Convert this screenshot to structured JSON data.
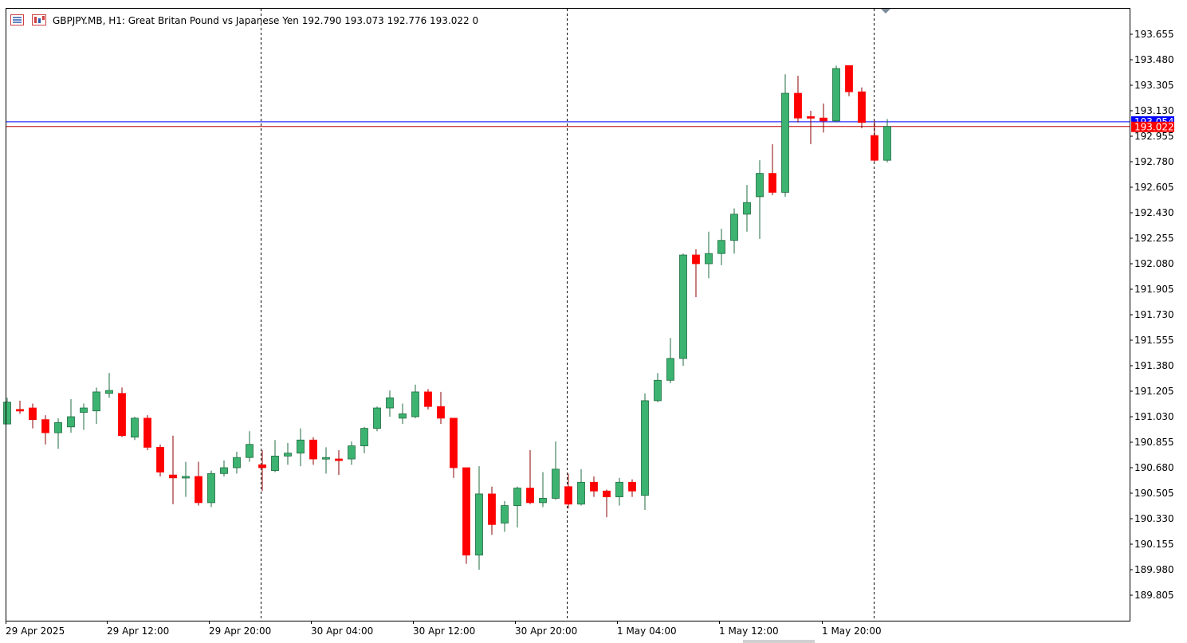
{
  "header": {
    "symbol": "GBPJPY.MB, H1:  Great Britan Pound vs Japanese Yen  192.790 193.073 192.776 193.022  0"
  },
  "colors": {
    "bull": "#3cb371",
    "bear": "#ff0000",
    "bid_line": "#0000ff",
    "ask_line": "#c00000",
    "price_tag_bid": "#0000ff",
    "price_tag_ask": "#ff0000",
    "grid": "#000000"
  },
  "chart_data": {
    "type": "candlestick",
    "symbol": "GBPJPY.MB",
    "timeframe": "H1",
    "ylim": [
      189.63,
      193.83
    ],
    "y_ticks": [
      "193.655",
      "193.480",
      "193.305",
      "193.130",
      "192.955",
      "192.780",
      "192.605",
      "192.430",
      "192.255",
      "192.080",
      "191.905",
      "191.730",
      "191.555",
      "191.380",
      "191.205",
      "191.030",
      "190.855",
      "190.680",
      "190.505",
      "190.330",
      "190.155",
      "189.980",
      "189.805"
    ],
    "x_ticks": [
      "29 Apr 2025",
      "29 Apr 12:00",
      "29 Apr 20:00",
      "30 Apr 04:00",
      "30 Apr 12:00",
      "30 Apr 20:00",
      "1 May 04:00",
      "1 May 12:00",
      "1 May 20:00"
    ],
    "session_separators": [
      "29 Apr 20:00",
      "30 Apr 20:00",
      "1 May 20:00"
    ],
    "bid_price": "193.054",
    "last_price": "193.022",
    "candles": [
      {
        "o": 190.98,
        "h": 191.16,
        "l": 190.98,
        "c": 191.13
      },
      {
        "o": 191.08,
        "h": 191.14,
        "l": 191.05,
        "c": 191.07
      },
      {
        "o": 191.09,
        "h": 191.12,
        "l": 190.95,
        "c": 191.01
      },
      {
        "o": 191.01,
        "h": 191.04,
        "l": 190.84,
        "c": 190.92
      },
      {
        "o": 190.92,
        "h": 191.02,
        "l": 190.81,
        "c": 190.99
      },
      {
        "o": 190.96,
        "h": 191.15,
        "l": 190.92,
        "c": 191.03
      },
      {
        "o": 191.06,
        "h": 191.12,
        "l": 190.94,
        "c": 191.09
      },
      {
        "o": 191.07,
        "h": 191.23,
        "l": 190.98,
        "c": 191.2
      },
      {
        "o": 191.19,
        "h": 191.33,
        "l": 191.16,
        "c": 191.21
      },
      {
        "o": 191.19,
        "h": 191.23,
        "l": 190.89,
        "c": 190.9
      },
      {
        "o": 190.89,
        "h": 191.03,
        "l": 190.87,
        "c": 191.02
      },
      {
        "o": 191.02,
        "h": 191.04,
        "l": 190.8,
        "c": 190.82
      },
      {
        "o": 190.82,
        "h": 190.84,
        "l": 190.62,
        "c": 190.65
      },
      {
        "o": 190.63,
        "h": 190.9,
        "l": 190.43,
        "c": 190.61
      },
      {
        "o": 190.62,
        "h": 190.72,
        "l": 190.48,
        "c": 190.62
      },
      {
        "o": 190.62,
        "h": 190.72,
        "l": 190.42,
        "c": 190.44
      },
      {
        "o": 190.44,
        "h": 190.66,
        "l": 190.41,
        "c": 190.64
      },
      {
        "o": 190.64,
        "h": 190.73,
        "l": 190.62,
        "c": 190.68
      },
      {
        "o": 190.68,
        "h": 190.79,
        "l": 190.64,
        "c": 190.75
      },
      {
        "o": 190.75,
        "h": 190.93,
        "l": 190.72,
        "c": 190.84
      },
      {
        "o": 190.7,
        "h": 190.8,
        "l": 190.52,
        "c": 190.68
      },
      {
        "o": 190.66,
        "h": 190.87,
        "l": 190.65,
        "c": 190.76
      },
      {
        "o": 190.76,
        "h": 190.85,
        "l": 190.7,
        "c": 190.78
      },
      {
        "o": 190.78,
        "h": 190.95,
        "l": 190.69,
        "c": 190.87
      },
      {
        "o": 190.87,
        "h": 190.89,
        "l": 190.7,
        "c": 190.74
      },
      {
        "o": 190.74,
        "h": 190.82,
        "l": 190.64,
        "c": 190.75
      },
      {
        "o": 190.74,
        "h": 190.8,
        "l": 190.63,
        "c": 190.73
      },
      {
        "o": 190.74,
        "h": 190.86,
        "l": 190.7,
        "c": 190.83
      },
      {
        "o": 190.83,
        "h": 190.96,
        "l": 190.78,
        "c": 190.95
      },
      {
        "o": 190.95,
        "h": 191.1,
        "l": 190.93,
        "c": 191.09
      },
      {
        "o": 191.09,
        "h": 191.21,
        "l": 191.03,
        "c": 191.16
      },
      {
        "o": 191.02,
        "h": 191.12,
        "l": 190.98,
        "c": 191.05
      },
      {
        "o": 191.03,
        "h": 191.25,
        "l": 191.02,
        "c": 191.2
      },
      {
        "o": 191.2,
        "h": 191.22,
        "l": 191.08,
        "c": 191.1
      },
      {
        "o": 191.1,
        "h": 191.2,
        "l": 190.98,
        "c": 191.02
      },
      {
        "o": 191.02,
        "h": 191.02,
        "l": 190.61,
        "c": 190.68
      },
      {
        "o": 190.68,
        "h": 190.68,
        "l": 190.02,
        "c": 190.08
      },
      {
        "o": 190.08,
        "h": 190.69,
        "l": 189.98,
        "c": 190.5
      },
      {
        "o": 190.5,
        "h": 190.55,
        "l": 190.22,
        "c": 190.29
      },
      {
        "o": 190.3,
        "h": 190.45,
        "l": 190.24,
        "c": 190.42
      },
      {
        "o": 190.42,
        "h": 190.55,
        "l": 190.27,
        "c": 190.54
      },
      {
        "o": 190.54,
        "h": 190.8,
        "l": 190.43,
        "c": 190.44
      },
      {
        "o": 190.44,
        "h": 190.65,
        "l": 190.41,
        "c": 190.47
      },
      {
        "o": 190.47,
        "h": 190.86,
        "l": 190.46,
        "c": 190.67
      },
      {
        "o": 190.55,
        "h": 190.64,
        "l": 190.4,
        "c": 190.43
      },
      {
        "o": 190.43,
        "h": 190.67,
        "l": 190.42,
        "c": 190.58
      },
      {
        "o": 190.58,
        "h": 190.62,
        "l": 190.48,
        "c": 190.52
      },
      {
        "o": 190.52,
        "h": 190.53,
        "l": 190.34,
        "c": 190.48
      },
      {
        "o": 190.48,
        "h": 190.61,
        "l": 190.42,
        "c": 190.58
      },
      {
        "o": 190.58,
        "h": 190.6,
        "l": 190.48,
        "c": 190.52
      },
      {
        "o": 190.49,
        "h": 191.19,
        "l": 190.39,
        "c": 191.14
      },
      {
        "o": 191.14,
        "h": 191.33,
        "l": 191.13,
        "c": 191.28
      },
      {
        "o": 191.28,
        "h": 191.57,
        "l": 191.26,
        "c": 191.43
      },
      {
        "o": 191.43,
        "h": 192.15,
        "l": 191.38,
        "c": 192.14
      },
      {
        "o": 192.14,
        "h": 192.18,
        "l": 191.85,
        "c": 192.08
      },
      {
        "o": 192.08,
        "h": 192.3,
        "l": 191.98,
        "c": 192.15
      },
      {
        "o": 192.15,
        "h": 192.32,
        "l": 192.07,
        "c": 192.24
      },
      {
        "o": 192.24,
        "h": 192.46,
        "l": 192.15,
        "c": 192.42
      },
      {
        "o": 192.42,
        "h": 192.62,
        "l": 192.3,
        "c": 192.5
      },
      {
        "o": 192.54,
        "h": 192.79,
        "l": 192.25,
        "c": 192.7
      },
      {
        "o": 192.7,
        "h": 192.9,
        "l": 192.55,
        "c": 192.57
      },
      {
        "o": 192.57,
        "h": 193.38,
        "l": 192.54,
        "c": 193.25
      },
      {
        "o": 193.25,
        "h": 193.37,
        "l": 193.05,
        "c": 193.08
      },
      {
        "o": 193.09,
        "h": 193.13,
        "l": 192.9,
        "c": 193.08
      },
      {
        "o": 193.08,
        "h": 193.18,
        "l": 192.98,
        "c": 193.06
      },
      {
        "o": 193.06,
        "h": 193.44,
        "l": 193.05,
        "c": 193.42
      },
      {
        "o": 193.44,
        "h": 193.44,
        "l": 193.23,
        "c": 193.26
      },
      {
        "o": 193.26,
        "h": 193.29,
        "l": 193.01,
        "c": 193.05
      },
      {
        "o": 192.96,
        "h": 193.06,
        "l": 192.78,
        "c": 192.79
      },
      {
        "o": 192.79,
        "h": 193.073,
        "l": 192.776,
        "c": 193.022
      }
    ]
  }
}
